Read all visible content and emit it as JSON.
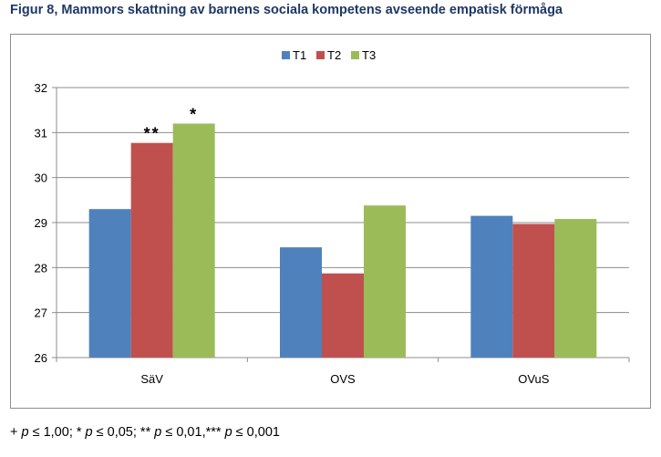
{
  "figure": {
    "title": "Figur 8, Mammors skattning av barnens sociala kompetens avseende empatisk förmåga",
    "footnote": {
      "p1_prefix": "+ ",
      "p1_sym": "p",
      "p1_val": " ≤ 1,00; ",
      "p2_prefix": "* ",
      "p2_sym": "p",
      "p2_val": " ≤ 0,05; ",
      "p3_prefix": "** ",
      "p3_sym": "p",
      "p3_val": " ≤ 0,01,",
      "p4_prefix": "*** ",
      "p4_sym": "p",
      "p4_val": " ≤ 0,001"
    }
  },
  "chart_data": {
    "type": "bar",
    "categories": [
      "SäV",
      "OVS",
      "OVuS"
    ],
    "series": [
      {
        "name": "T1",
        "color": "#4f81bd",
        "values": [
          29.3,
          28.45,
          29.15
        ]
      },
      {
        "name": "T2",
        "color": "#c0504d",
        "values": [
          30.77,
          27.87,
          28.97
        ]
      },
      {
        "name": "T3",
        "color": "#9bbb59",
        "values": [
          31.2,
          29.38,
          29.08
        ]
      }
    ],
    "annotations": [
      {
        "category": "SäV",
        "series": "T2",
        "text": "**"
      },
      {
        "category": "SäV",
        "series": "T3",
        "text": "*"
      }
    ],
    "ylim": [
      26,
      32
    ],
    "yticks": [
      "26",
      "27",
      "28",
      "29",
      "30",
      "31",
      "32"
    ],
    "grid": true,
    "legend": "top-center"
  }
}
